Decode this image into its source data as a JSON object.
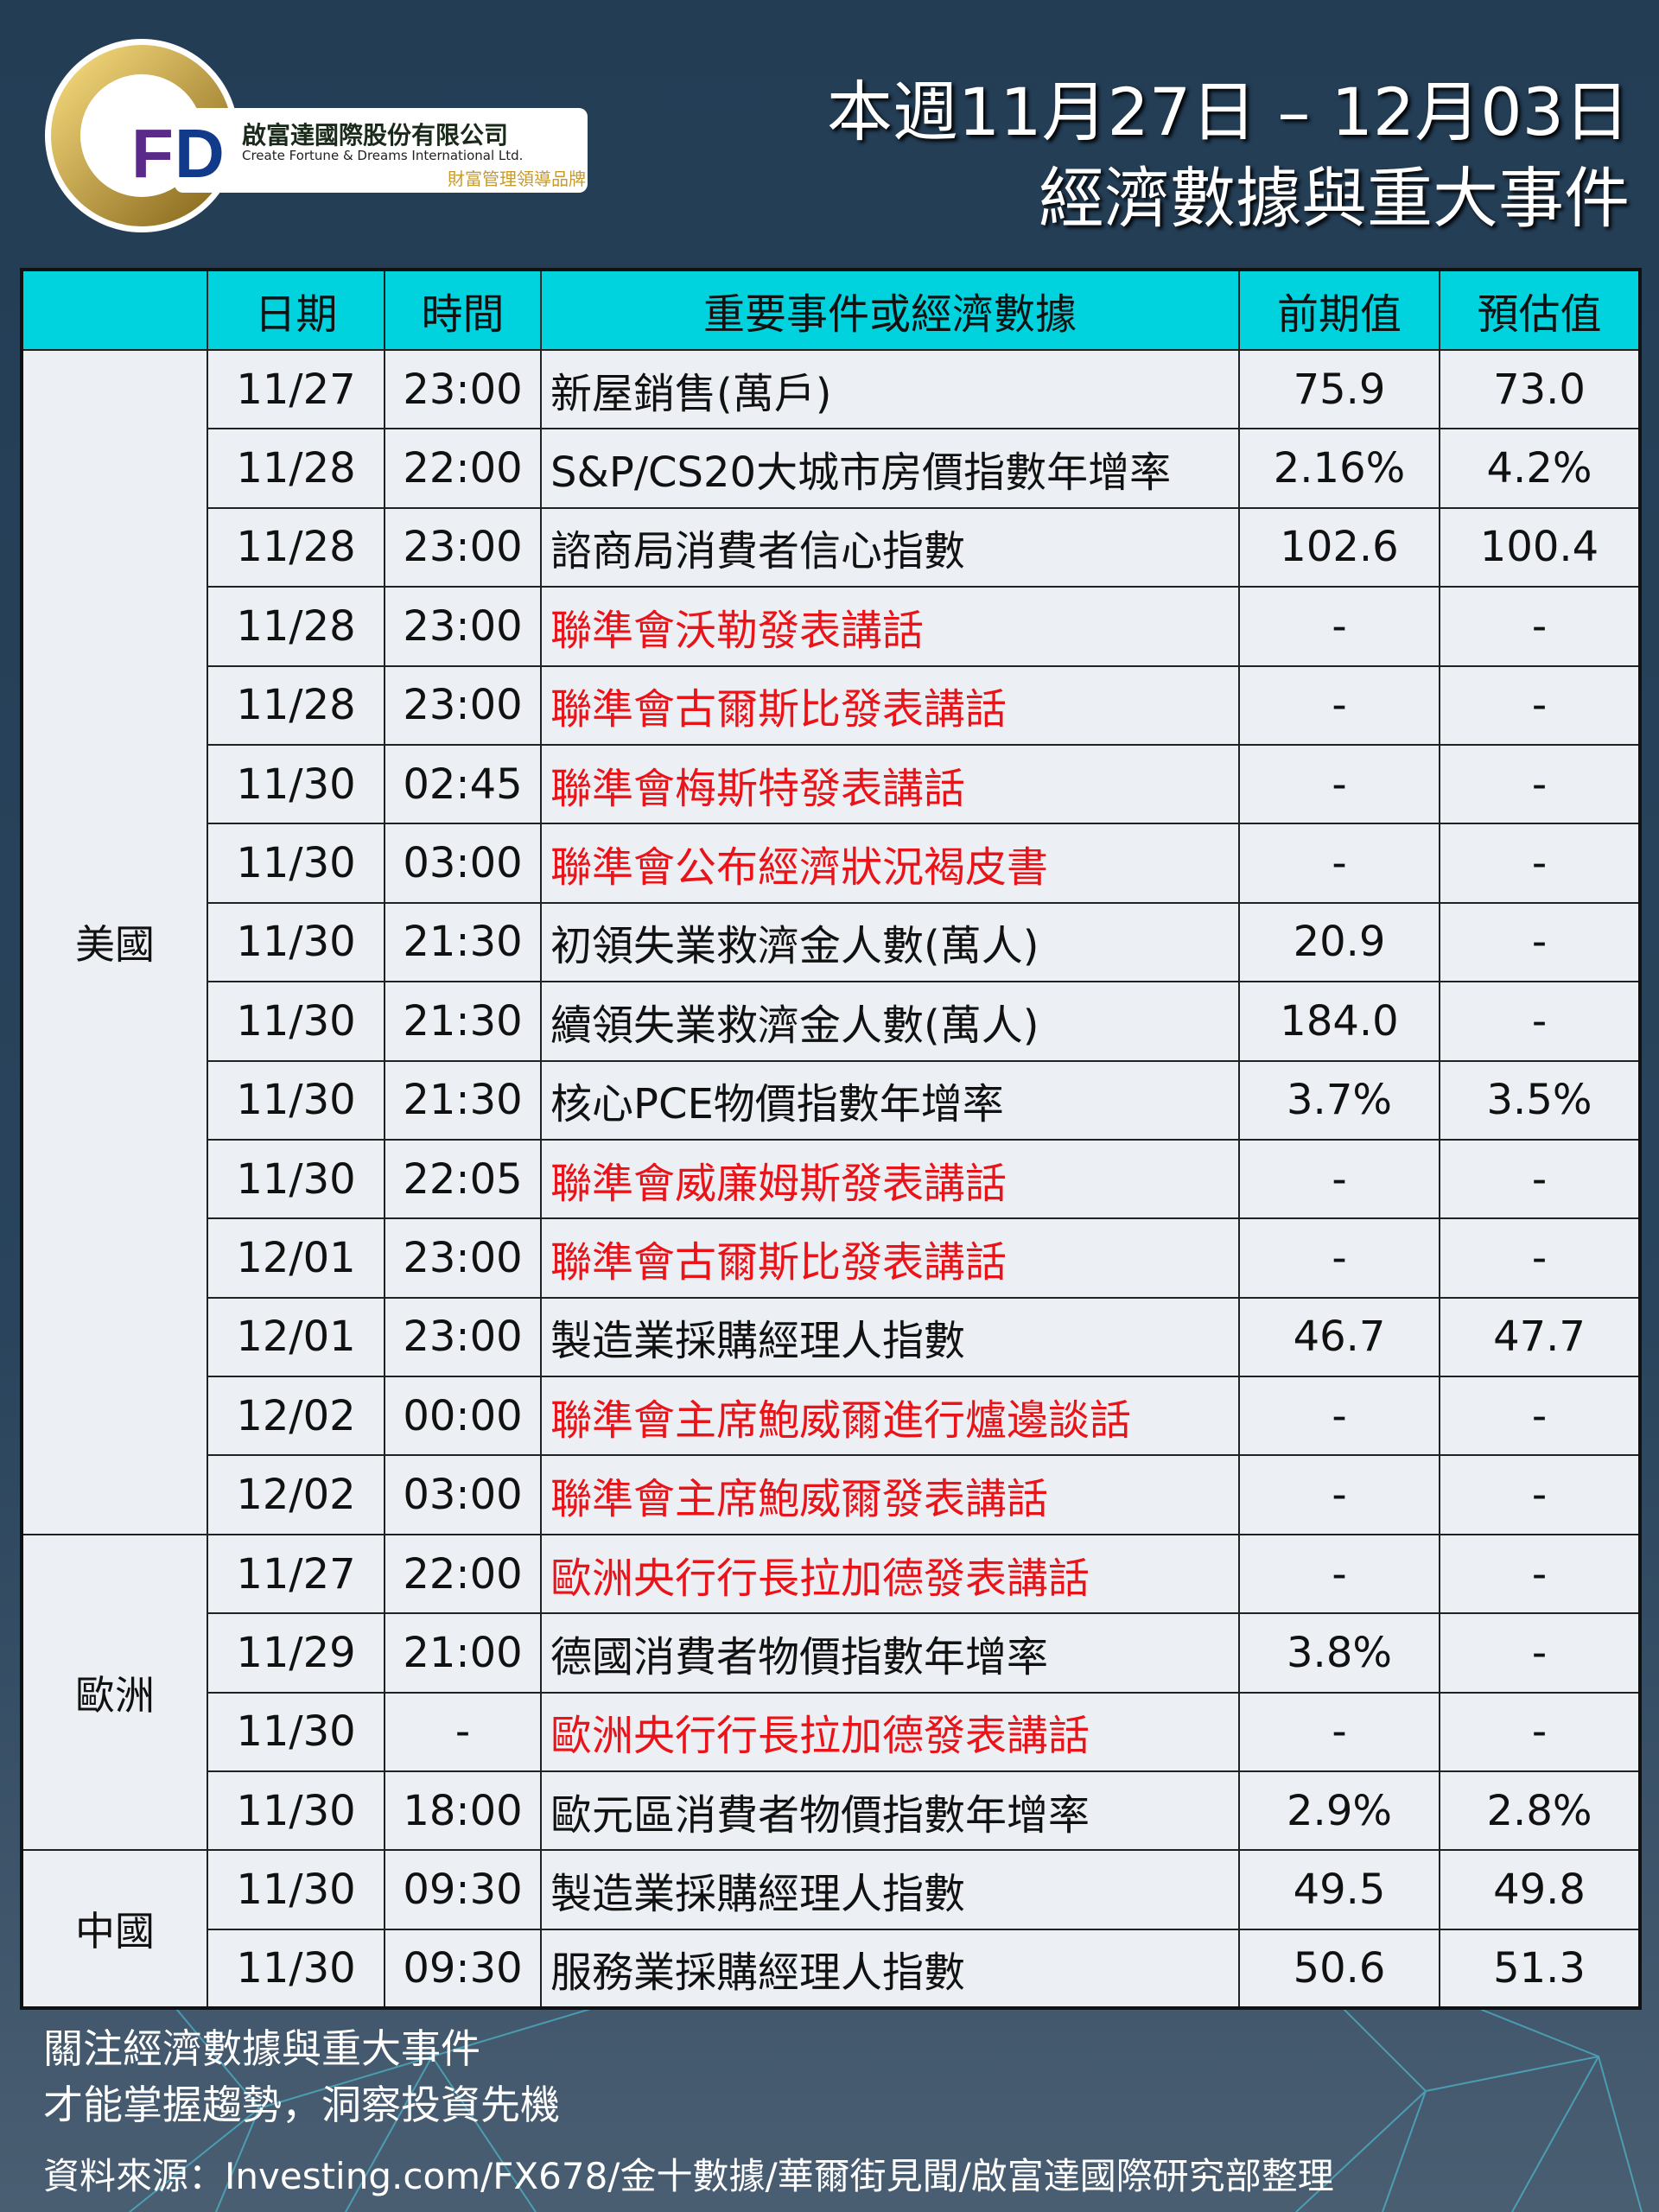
{
  "logo": {
    "mark": "CFD",
    "name_zh": "啟富達國際股份有限公司",
    "name_en": "Create Fortune & Dreams International Ltd.",
    "slogan": "財富管理領導品牌"
  },
  "title": {
    "line1": "本週11月27日 – 12月03日",
    "line2": "經濟數據與重大事件"
  },
  "colors": {
    "header": "#00d2de",
    "highlight": "#e8141a",
    "background": "#233d55"
  },
  "table": {
    "headers": [
      "",
      "日期",
      "時間",
      "重要事件或經濟數據",
      "前期值",
      "預估值"
    ],
    "groups": [
      {
        "region": "美國",
        "rows": [
          {
            "date": "11/27",
            "time": "23:00",
            "event": "新屋銷售(萬戶)",
            "prev": "75.9",
            "est": "73.0",
            "highlight": false
          },
          {
            "date": "11/28",
            "time": "22:00",
            "event": "S&P/CS20大城市房價指數年增率",
            "prev": "2.16%",
            "est": "4.2%",
            "highlight": false
          },
          {
            "date": "11/28",
            "time": "23:00",
            "event": "諮商局消費者信心指數",
            "prev": "102.6",
            "est": "100.4",
            "highlight": false
          },
          {
            "date": "11/28",
            "time": "23:00",
            "event": "聯準會沃勒發表講話",
            "prev": "-",
            "est": "-",
            "highlight": true
          },
          {
            "date": "11/28",
            "time": "23:00",
            "event": "聯準會古爾斯比發表講話",
            "prev": "-",
            "est": "-",
            "highlight": true
          },
          {
            "date": "11/30",
            "time": "02:45",
            "event": "聯準會梅斯特發表講話",
            "prev": "-",
            "est": "-",
            "highlight": true
          },
          {
            "date": "11/30",
            "time": "03:00",
            "event": "聯準會公布經濟狀況褐皮書",
            "prev": "-",
            "est": "-",
            "highlight": true
          },
          {
            "date": "11/30",
            "time": "21:30",
            "event": "初領失業救濟金人數(萬人)",
            "prev": "20.9",
            "est": "-",
            "highlight": false
          },
          {
            "date": "11/30",
            "time": "21:30",
            "event": "續領失業救濟金人數(萬人)",
            "prev": "184.0",
            "est": "-",
            "highlight": false
          },
          {
            "date": "11/30",
            "time": "21:30",
            "event": "核心PCE物價指數年增率",
            "prev": "3.7%",
            "est": "3.5%",
            "highlight": false
          },
          {
            "date": "11/30",
            "time": "22:05",
            "event": "聯準會威廉姆斯發表講話",
            "prev": "-",
            "est": "-",
            "highlight": true
          },
          {
            "date": "12/01",
            "time": "23:00",
            "event": "聯準會古爾斯比發表講話",
            "prev": "-",
            "est": "-",
            "highlight": true
          },
          {
            "date": "12/01",
            "time": "23:00",
            "event": "製造業採購經理人指數",
            "prev": "46.7",
            "est": "47.7",
            "highlight": false
          },
          {
            "date": "12/02",
            "time": "00:00",
            "event": "聯準會主席鮑威爾進行爐邊談話",
            "prev": "-",
            "est": "-",
            "highlight": true
          },
          {
            "date": "12/02",
            "time": "03:00",
            "event": "聯準會主席鮑威爾發表講話",
            "prev": "-",
            "est": "-",
            "highlight": true
          }
        ]
      },
      {
        "region": "歐洲",
        "rows": [
          {
            "date": "11/27",
            "time": "22:00",
            "event": "歐洲央行行長拉加德發表講話",
            "prev": "-",
            "est": "-",
            "highlight": true
          },
          {
            "date": "11/29",
            "time": "21:00",
            "event": "德國消費者物價指數年增率",
            "prev": "3.8%",
            "est": "-",
            "highlight": false
          },
          {
            "date": "11/30",
            "time": "-",
            "event": "歐洲央行行長拉加德發表講話",
            "prev": "-",
            "est": "-",
            "highlight": true
          },
          {
            "date": "11/30",
            "time": "18:00",
            "event": "歐元區消費者物價指數年增率",
            "prev": "2.9%",
            "est": "2.8%",
            "highlight": false
          }
        ]
      },
      {
        "region": "中國",
        "rows": [
          {
            "date": "11/30",
            "time": "09:30",
            "event": "製造業採購經理人指數",
            "prev": "49.5",
            "est": "49.8",
            "highlight": false
          },
          {
            "date": "11/30",
            "time": "09:30",
            "event": "服務業採購經理人指數",
            "prev": "50.6",
            "est": "51.3",
            "highlight": false
          }
        ]
      }
    ]
  },
  "footer": {
    "line1": "關注經濟數據與重大事件",
    "line2": "才能掌握趨勢，洞察投資先機",
    "source": "資料來源：Investing.com/FX678/金十數據/華爾街見聞/啟富達國際研究部整理"
  }
}
